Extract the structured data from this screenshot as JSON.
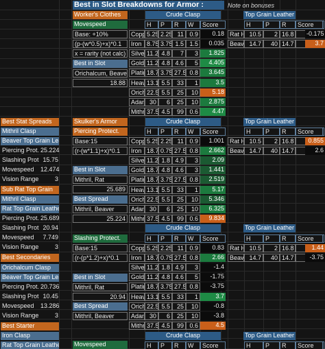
{
  "title": "Best in Slot Breakdowns for Armor :",
  "note": "Note on bonuses",
  "top": {
    "section": "Worker's Clothes",
    "crude": "Crude Clasp",
    "leather": "Top Grain Leather",
    "stat": "Movespeed",
    "hprw": [
      "H",
      "P",
      "R",
      "W"
    ],
    "score": "Score",
    "base": "Base: +10%",
    "formula": "(p-(w*0.5)+x)*0.1",
    "xnote": "x = rarity (not calc)",
    "bis": "Best in Slot",
    "bis_mats": "Orichalcum, Beaver",
    "bis_val": "18.88",
    "rows": [
      [
        "Coppe",
        "5.25",
        "2.25",
        "11",
        "0.9",
        "0.18"
      ],
      [
        "Iron",
        "8.75",
        "3.75",
        "1.5",
        "1.5",
        "0.035"
      ],
      [
        "Silver",
        "11.2",
        "4.8",
        "7",
        "3",
        "1.825"
      ],
      [
        "Gold",
        "11.2",
        "4.8",
        "4.6",
        "5",
        "4.405"
      ],
      [
        "Platin",
        "18.7",
        "3.75",
        "27.5",
        "0.8",
        "3.645"
      ],
      [
        "Heavy",
        "13.1",
        "5.5",
        "33",
        "1",
        "3.5"
      ],
      [
        "Oricha",
        "22.5",
        "5.5",
        "25",
        "10",
        "5.18"
      ],
      [
        "Adam",
        "30",
        "6",
        "25",
        "10",
        "2.875"
      ],
      [
        "Mithril",
        "37.5",
        "4.5",
        "99",
        "0.6",
        "4.47"
      ]
    ],
    "right": [
      [
        "Rat Hi",
        "10.5",
        "2",
        "16.8",
        "7.5",
        "-0.175"
      ],
      [
        "Beave",
        "14.7",
        "40",
        "14.7",
        "6",
        "3.7"
      ]
    ]
  },
  "mid": {
    "section": "Skulker's Armor",
    "crude": "Crude Clasp",
    "leather": "Top Grain Leather",
    "stat": "Piercing Protect.",
    "score": "Score",
    "base": "Base:15",
    "formula": "(r-(w*1.1)+x)*0.1",
    "bis": "Best in Slot",
    "bis_mats": "Mithril, Rat",
    "bis_val": "25.689",
    "bs": "Best Spread",
    "bs_mats": "Mithril, Beaver",
    "bs_val": "25.224",
    "rows": [
      [
        "Coppe",
        "5.25",
        "2.25",
        "11",
        "0.9",
        "1.001"
      ],
      [
        "Iron",
        "18.7",
        "0.75",
        "27.5",
        "0.8",
        "2.662"
      ],
      [
        "Silver",
        "11.2",
        "1.8",
        "4.9",
        "3",
        "2.09"
      ],
      [
        "Gold",
        "18.7",
        "4.8",
        "4.6",
        "3",
        "1.441"
      ],
      [
        "Platin",
        "18.7",
        "3.75",
        "27.5",
        "0.8",
        "2.519"
      ],
      [
        "Heavy",
        "13.1",
        "5.5",
        "33",
        "1",
        "5.17"
      ],
      [
        "Oricha",
        "22.5",
        "5.5",
        "25",
        "10",
        "5.346"
      ],
      [
        "Adam",
        "30",
        "6",
        "25",
        "10",
        "6.325"
      ],
      [
        "Mithril",
        "37.5",
        "4.5",
        "99",
        "0.6",
        "9.834"
      ]
    ],
    "right": [
      [
        "Rat Hi",
        "10.5",
        "2",
        "16.8",
        "7.5",
        "0.855"
      ],
      [
        "Beave",
        "14.7",
        "40",
        "14.7",
        "6",
        "2.6"
      ]
    ]
  },
  "bot": {
    "crude": "Crude Clasp",
    "leather": "Top Grain Leather",
    "stat": "Slashing Protect.",
    "score": "Score",
    "base": "Base:15",
    "formula": "(r-(p*1.2)+x)*0.1",
    "bis": "Best in Slot",
    "bis_mats": "Mithril, Rat",
    "bis_val": "20.94",
    "bs": "Best Spread",
    "bs_mats": "Mithril, Beaver",
    "rows": [
      [
        "Coppe",
        "5.25",
        "2.25",
        "11",
        "0.9",
        "0.83"
      ],
      [
        "Iron",
        "18.7",
        "0.75",
        "27.5",
        "0.8",
        "2.66"
      ],
      [
        "Silver",
        "11.2",
        "1.8",
        "4.9",
        "3",
        "-1.4"
      ],
      [
        "Gold",
        "11.2",
        "4.8",
        "4.6",
        "5",
        "-1.75"
      ],
      [
        "Platin",
        "18.7",
        "3.75",
        "27.5",
        "0.8",
        "-3.75"
      ],
      [
        "Heavy",
        "13.1",
        "5.5",
        "33",
        "1",
        "3.7"
      ],
      [
        "Oricha",
        "22.5",
        "5.5",
        "25",
        "10",
        "-0.8"
      ],
      [
        "Adam",
        "30",
        "6",
        "25",
        "10",
        "-3.8"
      ],
      [
        "Mithril",
        "37.5",
        "4.5",
        "99",
        "0.6",
        "4.5"
      ]
    ],
    "right": [
      [
        "Rat Hi",
        "10.5",
        "2",
        "16.8",
        "7.5",
        "1.44"
      ],
      [
        "Beave",
        "14.7",
        "40",
        "14.7",
        "6",
        "-3.75"
      ]
    ]
  },
  "last": {
    "stat": "Movespeed",
    "crude": "Crude Clasp",
    "leather": "Top Grain Leather"
  },
  "left": {
    "bss": "Best Stat Spreads",
    "mithril_clasp": "Mithril Clasp",
    "beaver_tgl": "Beaver Top Grain Lea",
    "a": [
      [
        "Piercing Prot.",
        "25.224"
      ],
      [
        "Slashing Prot.",
        "15.75"
      ],
      [
        "Movespeed",
        "12.474"
      ],
      [
        "Vision Range",
        "3"
      ]
    ],
    "subrat": "Sub Rat Top Grain",
    "mithril_clasp2": "Mithril Clasp",
    "rat_tgl": "Rat Top Grain Leather",
    "b": [
      [
        "Piercing Prot.",
        "25.689"
      ],
      [
        "Slashing Prot.",
        "20.94"
      ],
      [
        "Movespeed",
        "7.749"
      ],
      [
        "Vision Range",
        "3"
      ]
    ],
    "bsec": "Best Secondaries",
    "ori": "Orichalcum Clasp",
    "beaver_tgl2": "Beaver Top Grain Lea",
    "c": [
      [
        "Piercing Prot.",
        "20.736"
      ],
      [
        "Slashing Prot.",
        "10.45"
      ],
      [
        "Movespeed",
        "13.286"
      ],
      [
        "Vision Range",
        "3"
      ]
    ],
    "bstarter": "Best Starter",
    "iron": "Iron Clasp",
    "rat_tgl2": "Rat Top Grain Leather"
  }
}
